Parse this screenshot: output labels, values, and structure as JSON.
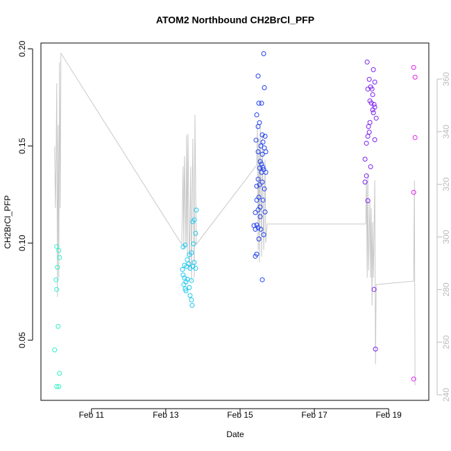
{
  "chart_data": {
    "type": "scatter",
    "title": "ATOM2 Northbound CH2BrCl_PFP",
    "xlabel": "Date",
    "ylabel": "CH2BrCl_PFP",
    "xlim": [
      9.64,
      20.08
    ],
    "ylim": [
      0.019,
      0.203
    ],
    "y2lim": [
      237.9,
      373.7
    ],
    "xticks": [
      {
        "value": 11,
        "label": "Feb 11"
      },
      {
        "value": 13,
        "label": "Feb 13"
      },
      {
        "value": 15,
        "label": "Feb 15"
      },
      {
        "value": 17,
        "label": "Feb 17"
      },
      {
        "value": 19,
        "label": "Feb 19"
      }
    ],
    "yticks": [
      0.05,
      {
        "value": 0.1,
        "label": "0.10"
      },
      0.15,
      {
        "value": 0.2,
        "label": "0.20"
      }
    ],
    "y2ticks": [
      240,
      260,
      280,
      300,
      320,
      340,
      360
    ],
    "series": [
      {
        "type": "line",
        "axis": "y2",
        "color": "#c8c8c8",
        "x": [
          10.009,
          10.028,
          10.047,
          10.065,
          10.084,
          10.103,
          10.121,
          10.14,
          10.159,
          10.178,
          13.43,
          13.467,
          13.486,
          13.505,
          13.542,
          13.561,
          13.579,
          13.598,
          13.636,
          13.673,
          13.692,
          13.729,
          13.766,
          13.785,
          13.822,
          15.449,
          15.467,
          15.486,
          15.505,
          15.523,
          15.542,
          15.579,
          15.598,
          15.636,
          15.673,
          15.692,
          15.729,
          18.383,
          18.402,
          18.421,
          18.439,
          18.458,
          18.495,
          18.514,
          18.533,
          18.551,
          18.57,
          18.589,
          18.626,
          18.645,
          18.664,
          19.673,
          19.692,
          19.71
        ],
        "values": [
          334.4,
          310.9,
          326.8,
          358.4,
          277.2,
          342.6,
          284.5,
          366.3,
          310.9,
          369.8,
          297.2,
          326.8,
          295.1,
          330.7,
          296.4,
          338.6,
          292.5,
          339.2,
          287.2,
          326.8,
          283.2,
          337.3,
          284.5,
          346.5,
          297.2,
          327.3,
          342.6,
          295.1,
          337.3,
          290.3,
          341.3,
          292.5,
          338.6,
          295.1,
          329.4,
          297.7,
          304.9,
          304.9,
          321.5,
          284.5,
          324.1,
          287.2,
          313.6,
          284.5,
          310.9,
          274.0,
          305.6,
          284.5,
          321.5,
          251.6,
          281.9,
          283.2,
          321.5,
          243.6
        ]
      },
      {
        "color": "#2ef0c8",
        "x": [
          10.065,
          10.121,
          10.14,
          10.084,
          10.047,
          10.065,
          10.103,
          10.009,
          10.14,
          10.065,
          10.121
        ],
        "values": [
          0.0982,
          0.0961,
          0.0925,
          0.0875,
          0.0811,
          0.0761,
          0.0571,
          0.045,
          0.0329,
          0.0261,
          0.0261
        ]
      },
      {
        "color": "#1ec8f0",
        "x": [
          13.467,
          13.523,
          13.766,
          13.822,
          13.729,
          13.804,
          13.748,
          13.692,
          13.579,
          13.505,
          13.449,
          13.467,
          13.505,
          13.542,
          13.486,
          13.523,
          13.542,
          13.617,
          13.654,
          13.729,
          13.766,
          13.804,
          13.579,
          13.692,
          13.636,
          13.654,
          13.692,
          13.71,
          13.636,
          13.561
        ],
        "values": [
          0.098,
          0.099,
          0.112,
          0.117,
          0.111,
          0.105,
          0.0996,
          0.095,
          0.0914,
          0.0886,
          0.0864,
          0.0836,
          0.082,
          0.08,
          0.0786,
          0.0764,
          0.0754,
          0.0893,
          0.087,
          0.0879,
          0.09,
          0.087,
          0.0814,
          0.0807,
          0.0771,
          0.073,
          0.0707,
          0.0679,
          0.094,
          0.0879
        ]
      },
      {
        "color": "#1f3ff0",
        "x": [
          15.636,
          15.486,
          15.654,
          15.505,
          15.579,
          15.449,
          15.523,
          15.486,
          15.598,
          15.673,
          15.43,
          15.617,
          15.561,
          15.654,
          15.486,
          15.692,
          15.598,
          15.542,
          15.579,
          15.617,
          15.523,
          15.636,
          15.692,
          15.579,
          15.486,
          15.598,
          15.523,
          15.449,
          15.654,
          15.505,
          15.449,
          15.617,
          15.542,
          15.486,
          15.673,
          15.411,
          15.542,
          15.449,
          15.374,
          15.486,
          15.411,
          15.561,
          15.505,
          15.636,
          15.449,
          15.411,
          15.598
        ],
        "values": [
          0.1975,
          0.186,
          0.18,
          0.172,
          0.172,
          0.166,
          0.162,
          0.16,
          0.1557,
          0.155,
          0.153,
          0.152,
          0.15,
          0.149,
          0.147,
          0.147,
          0.1457,
          0.142,
          0.1407,
          0.139,
          0.1386,
          0.1379,
          0.1364,
          0.1364,
          0.1329,
          0.1314,
          0.13,
          0.1293,
          0.1279,
          0.1236,
          0.1221,
          0.1221,
          0.1186,
          0.1171,
          0.116,
          0.1157,
          0.1136,
          0.1093,
          0.109,
          0.1079,
          0.1071,
          0.1071,
          0.1021,
          0.1043,
          0.0943,
          0.0932,
          0.0811
        ]
      },
      {
        "color": "#7a1ff0",
        "x": [
          18.421,
          18.589,
          18.477,
          18.626,
          18.514,
          18.439,
          18.551,
          18.57,
          18.495,
          18.533,
          18.607,
          18.57,
          18.626,
          18.589,
          18.664,
          18.495,
          18.458,
          18.626,
          18.439,
          18.402,
          18.477,
          18.364,
          18.514,
          18.402,
          18.364,
          18.439,
          18.607,
          18.645
        ],
        "values": [
          0.1932,
          0.1893,
          0.1843,
          0.1829,
          0.1804,
          0.1793,
          0.1793,
          0.1764,
          0.1732,
          0.1721,
          0.1714,
          0.1686,
          0.17,
          0.1671,
          0.1643,
          0.1621,
          0.16,
          0.1532,
          0.155,
          0.1514,
          0.1571,
          0.1432,
          0.1393,
          0.1346,
          0.1314,
          0.1218,
          0.0761,
          0.0454
        ]
      },
      {
        "color": "#e01ff0",
        "x": [
          19.673,
          19.71,
          19.71,
          19.673,
          19.673
        ],
        "values": [
          0.1904,
          0.1854,
          0.1543,
          0.1261,
          0.03
        ]
      }
    ]
  }
}
